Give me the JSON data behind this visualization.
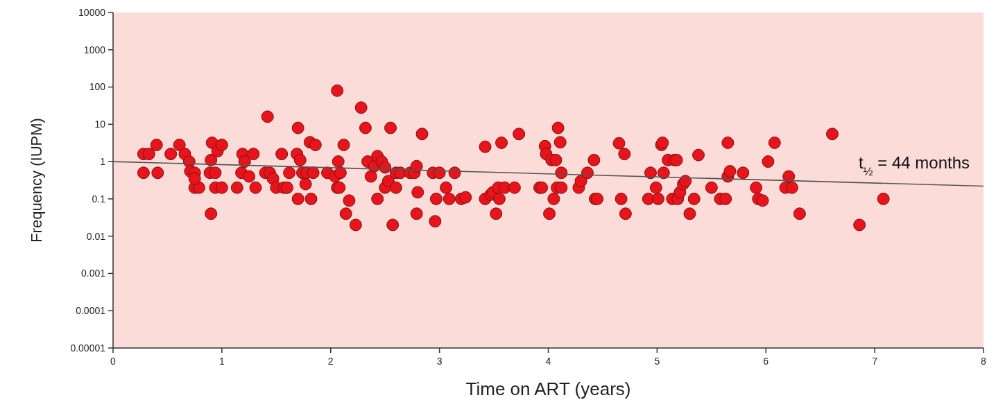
{
  "chart_data": {
    "type": "scatter",
    "xlabel": "Time on ART (years)",
    "ylabel": "Frequency (IUPM)",
    "log": "y",
    "grid": false,
    "xlim": [
      0,
      8
    ],
    "xticks": [
      0,
      1,
      2,
      3,
      4,
      5,
      6,
      7,
      8
    ],
    "ylim": [
      1e-05,
      10000
    ],
    "yticks": [
      {
        "value": 1e-05,
        "label": "0.00001"
      },
      0.0001,
      0.001,
      0.01,
      0.1,
      1,
      10,
      100,
      1000,
      10000
    ],
    "annotations": [
      "t$_{½}$ = 44 months"
    ],
    "series": [
      {
        "marker": "circle",
        "color": "#e8141c",
        "x": [
          0.28,
          0.28,
          0.33,
          0.4,
          0.41,
          0.53,
          0.61,
          0.66,
          0.7,
          0.71,
          0.75,
          0.75,
          0.79,
          0.75,
          0.89,
          0.9,
          0.9,
          0.91,
          0.94,
          0.94,
          0.96,
          1.0,
          1.0,
          1.14,
          1.18,
          1.19,
          1.21,
          1.25,
          1.29,
          1.31,
          1.42,
          1.4,
          1.44,
          1.47,
          1.5,
          1.55,
          1.57,
          1.62,
          1.6,
          1.69,
          1.7,
          1.7,
          1.72,
          1.74,
          1.77,
          1.78,
          1.81,
          1.82,
          1.86,
          1.84,
          1.97,
          2.06,
          2.04,
          2.07,
          2.06,
          2.09,
          2.12,
          2.08,
          2.14,
          2.17,
          2.23,
          2.28,
          2.32,
          2.34,
          2.37,
          2.4,
          2.43,
          2.43,
          2.47,
          2.5,
          2.5,
          2.53,
          2.55,
          2.57,
          2.6,
          2.6,
          2.64,
          2.73,
          2.77,
          2.79,
          2.8,
          2.79,
          2.84,
          2.94,
          2.96,
          2.97,
          3.0,
          3.06,
          3.09,
          3.14,
          3.2,
          3.24,
          3.42,
          3.42,
          3.47,
          3.49,
          3.52,
          3.54,
          3.55,
          3.57,
          3.6,
          3.69,
          3.73,
          3.92,
          3.94,
          3.97,
          3.98,
          4.01,
          4.03,
          4.05,
          4.07,
          4.08,
          4.09,
          4.11,
          4.12,
          4.12,
          4.28,
          4.3,
          4.36,
          4.42,
          4.43,
          4.45,
          4.65,
          4.67,
          4.7,
          4.71,
          4.92,
          4.94,
          4.99,
          5.01,
          5.04,
          5.05,
          5.06,
          5.1,
          5.14,
          5.16,
          5.18,
          5.19,
          5.21,
          5.24,
          5.26,
          5.3,
          5.34,
          5.38,
          5.5,
          5.58,
          5.63,
          5.65,
          5.65,
          5.67,
          5.79,
          5.91,
          5.93,
          5.97,
          6.02,
          6.08,
          6.21,
          6.18,
          6.24,
          6.31,
          6.61,
          6.86,
          7.08
        ],
        "values": [
          0.5,
          1.6,
          1.6,
          2.8,
          0.5,
          1.6,
          2.8,
          1.6,
          1,
          0.55,
          0.5,
          0.2,
          0.2,
          0.35,
          0.5,
          0.04,
          1.1,
          3.2,
          0.5,
          0.2,
          1.9,
          2.8,
          0.2,
          0.2,
          0.5,
          1.6,
          1,
          0.4,
          1.6,
          0.2,
          16,
          0.5,
          0.5,
          0.35,
          0.2,
          1.6,
          0.2,
          0.5,
          0.2,
          1.6,
          8,
          0.1,
          1.1,
          0.5,
          0.25,
          0.5,
          3.3,
          0.1,
          2.8,
          0.5,
          0.5,
          80,
          0.4,
          1,
          0.2,
          0.5,
          2.8,
          0.2,
          0.04,
          0.09,
          0.02,
          28,
          8,
          1,
          0.4,
          0.75,
          1.4,
          0.1,
          1,
          0.2,
          0.7,
          0.3,
          8,
          0.02,
          0.2,
          0.5,
          0.5,
          0.5,
          0.5,
          0.75,
          0.15,
          0.04,
          5.5,
          0.5,
          0.025,
          0.1,
          0.5,
          0.2,
          0.1,
          0.5,
          0.1,
          0.11,
          2.5,
          0.1,
          0.13,
          0.15,
          0.04,
          0.2,
          0.1,
          3.2,
          0.2,
          0.2,
          5.5,
          0.2,
          0.2,
          2.6,
          1.6,
          0.04,
          1.1,
          0.1,
          1.1,
          0.2,
          8,
          3.3,
          0.5,
          0.2,
          0.2,
          0.3,
          0.5,
          1.1,
          0.1,
          0.1,
          3.1,
          0.1,
          1.6,
          0.04,
          0.1,
          0.5,
          0.2,
          0.1,
          2.8,
          3.2,
          0.5,
          1.1,
          0.1,
          1.1,
          1.1,
          0.1,
          0.15,
          0.25,
          0.3,
          0.04,
          0.1,
          1.5,
          0.2,
          0.1,
          0.1,
          3.2,
          0.4,
          0.55,
          0.5,
          0.2,
          0.1,
          0.09,
          1,
          3.2,
          0.4,
          0.2,
          0.2,
          0.04,
          5.5,
          0.02,
          0.1
        ]
      },
      {
        "type": "line",
        "color": "#555555",
        "x": [
          0,
          8
        ],
        "values": [
          1,
          0.22
        ]
      }
    ]
  }
}
